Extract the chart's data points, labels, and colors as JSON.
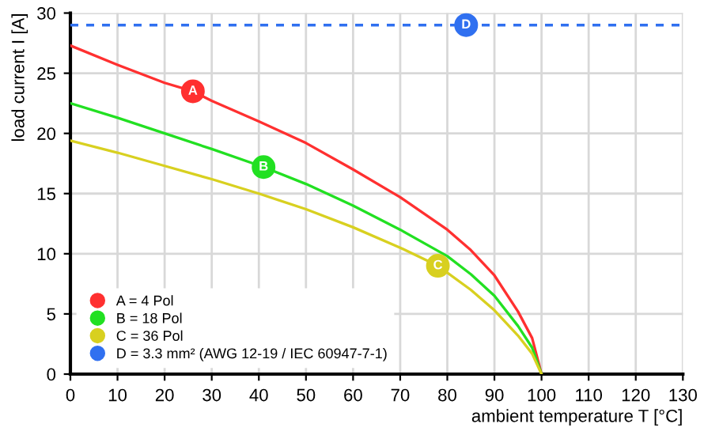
{
  "chart_data": {
    "type": "line",
    "xlabel": "ambient temperature T [°C]",
    "ylabel": "load current I [A]",
    "xlim": [
      0,
      130
    ],
    "xticks": [
      0,
      10,
      20,
      30,
      40,
      50,
      60,
      70,
      80,
      90,
      100,
      110,
      120,
      130
    ],
    "ylim": [
      0,
      30
    ],
    "yticks": [
      0,
      5,
      10,
      15,
      20,
      25,
      30
    ],
    "grid": true,
    "legend": "bottom left",
    "line_style": "solid",
    "series": [
      {
        "name": "A = 4 Pol",
        "color": "#ff3030",
        "x": [
          0,
          10,
          20,
          26,
          30,
          40,
          50,
          60,
          70,
          80,
          85,
          90,
          95,
          98,
          100
        ],
        "values": [
          27.3,
          25.7,
          24.2,
          23.5,
          22.7,
          21.0,
          19.2,
          17.0,
          14.7,
          12.0,
          10.3,
          8.2,
          5.2,
          3.0,
          0
        ]
      },
      {
        "name": "B = 18 Pol",
        "color": "#22e022",
        "x": [
          0,
          10,
          20,
          30,
          41,
          50,
          60,
          70,
          80,
          85,
          90,
          95,
          98,
          100
        ],
        "values": [
          22.5,
          21.3,
          20.0,
          18.7,
          17.2,
          15.8,
          14.0,
          12.0,
          9.8,
          8.3,
          6.5,
          4.0,
          2.2,
          0
        ]
      },
      {
        "name": "C = 36 Pol",
        "color": "#d8d020",
        "x": [
          0,
          10,
          20,
          30,
          40,
          50,
          60,
          70,
          78,
          85,
          90,
          95,
          98,
          100
        ],
        "values": [
          19.4,
          18.4,
          17.3,
          16.2,
          15.0,
          13.7,
          12.2,
          10.5,
          9.0,
          7.0,
          5.3,
          3.2,
          1.7,
          0
        ]
      },
      {
        "name": "D = 3.3 mm² (AWG 12-19 / IEC 60947-7-1)",
        "color": "#3070f0",
        "x": [
          0,
          130
        ],
        "values": [
          29,
          29
        ],
        "line_style": "dashed"
      }
    ],
    "annotations": [
      {
        "text": "A",
        "x": 26,
        "y": 23.5
      },
      {
        "text": "B",
        "x": 41,
        "y": 17.2
      },
      {
        "text": "C",
        "x": 78,
        "y": 9.0
      },
      {
        "text": "D",
        "x": 84,
        "y": 29
      }
    ]
  }
}
